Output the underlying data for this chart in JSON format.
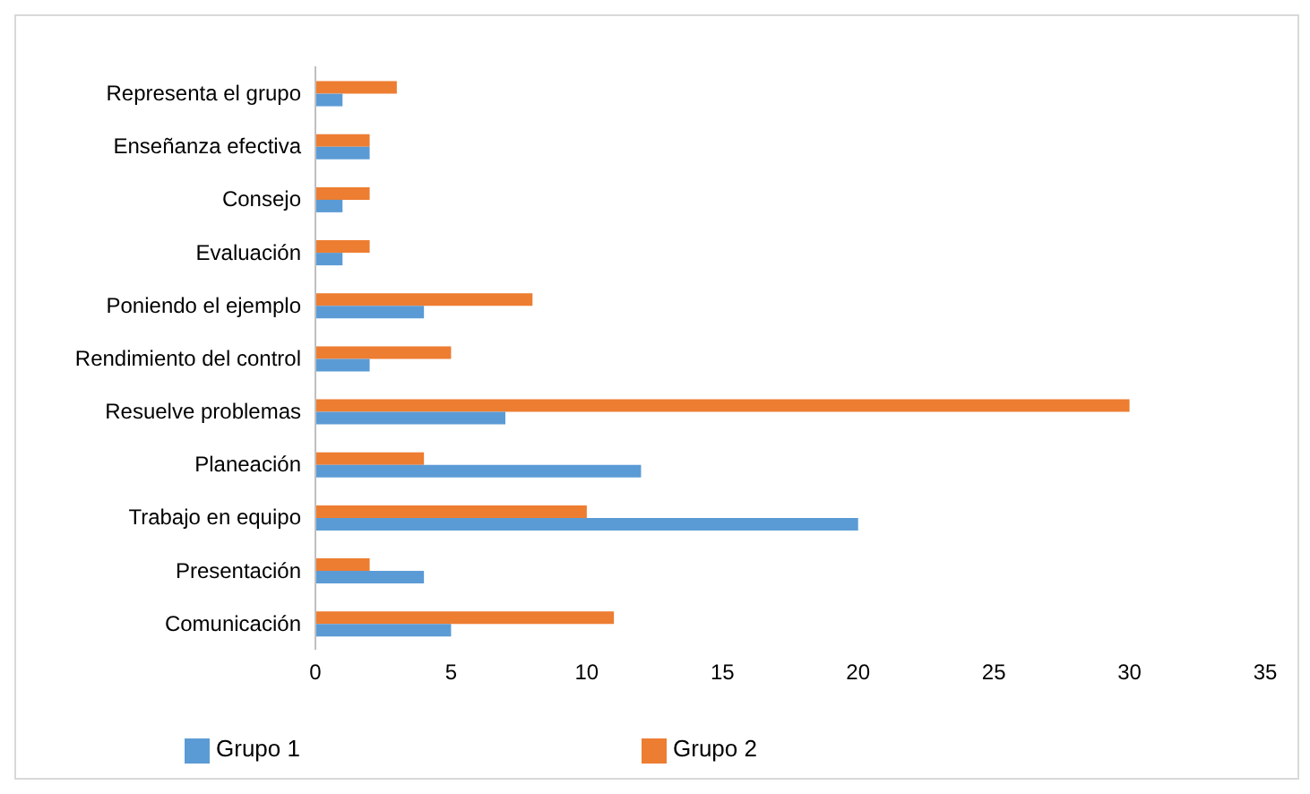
{
  "chart_data": {
    "type": "bar",
    "orientation": "horizontal",
    "categories": [
      "Representa el grupo",
      "Enseñanza efectiva",
      "Consejo",
      "Evaluación",
      "Poniendo el ejemplo",
      "Rendimiento del control",
      "Resuelve problemas",
      "Planeación",
      "Trabajo en equipo",
      "Presentación",
      "Comunicación"
    ],
    "series": [
      {
        "name": "Grupo 2",
        "color": "#ed7d31",
        "values": [
          3,
          2,
          2,
          2,
          8,
          5,
          30,
          4,
          10,
          2,
          11
        ]
      },
      {
        "name": "Grupo 1",
        "color": "#5b9bd5",
        "values": [
          1,
          2,
          1,
          1,
          4,
          2,
          7,
          12,
          20,
          4,
          5
        ]
      }
    ],
    "xlim": [
      0,
      35
    ],
    "xticks": [
      0,
      5,
      10,
      15,
      20,
      25,
      30,
      35
    ],
    "grid": false,
    "legend": "bottom"
  }
}
